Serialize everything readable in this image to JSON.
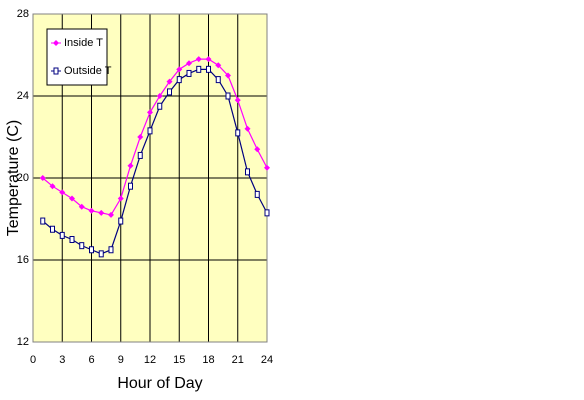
{
  "chart_data": {
    "type": "line",
    "x_label": "Hour of Day",
    "y_label": "Temperature (C)",
    "x": [
      1,
      2,
      3,
      4,
      5,
      6,
      7,
      8,
      9,
      10,
      11,
      12,
      13,
      14,
      15,
      16,
      17,
      18,
      19,
      20,
      21,
      22,
      23,
      24
    ],
    "series": [
      {
        "name": "Inside T",
        "color": "#ff00ff",
        "marker": "diamond",
        "values": [
          20.0,
          19.6,
          19.3,
          19.0,
          18.6,
          18.4,
          18.3,
          18.2,
          19.0,
          20.6,
          22.0,
          23.2,
          24.0,
          24.7,
          25.3,
          25.6,
          25.8,
          25.8,
          25.5,
          25.0,
          23.8,
          22.4,
          21.4,
          20.5
        ]
      },
      {
        "name": "Outside T",
        "color": "#000080",
        "marker": "square",
        "values": [
          17.9,
          17.5,
          17.2,
          17.0,
          16.7,
          16.5,
          16.3,
          16.5,
          17.9,
          19.6,
          21.1,
          22.3,
          23.5,
          24.2,
          24.8,
          25.1,
          25.3,
          25.3,
          24.8,
          24.0,
          22.2,
          20.3,
          19.2,
          18.3
        ]
      }
    ],
    "xlim": [
      0,
      24
    ],
    "xticks": [
      0,
      3,
      6,
      9,
      12,
      15,
      18,
      21,
      24
    ],
    "ylim": [
      12,
      28
    ],
    "yticks": [
      12,
      16,
      20,
      24,
      28
    ],
    "grid": true,
    "legend": "top-left",
    "background": "#ffffc0"
  }
}
